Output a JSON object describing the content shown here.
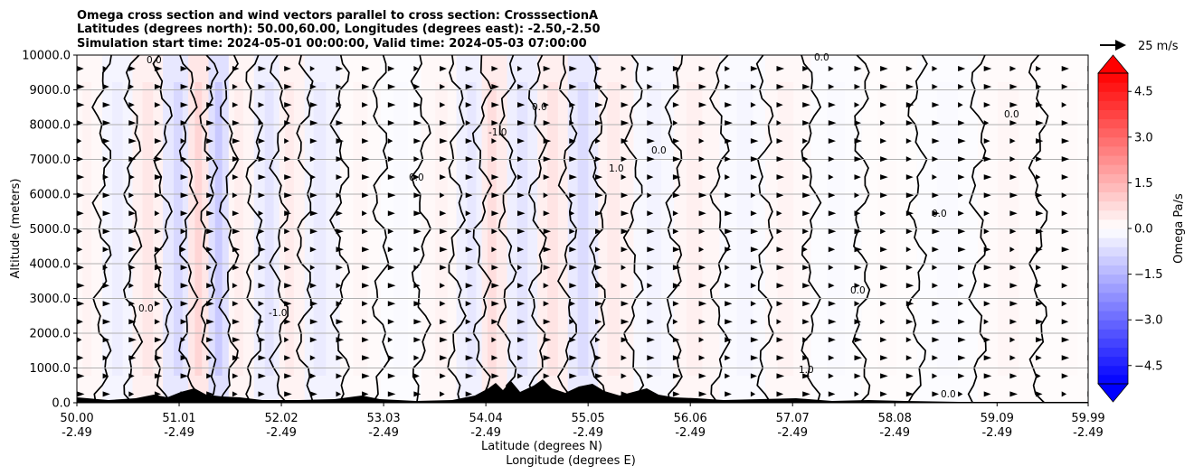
{
  "chart_data": {
    "type": "heatmap",
    "title": [
      "Omega cross section and wind vectors parallel to cross section: CrosssectionA",
      "Latitudes (degrees north): 50.00,60.00, Longitudes (degrees east): -2.50,-2.50",
      "Simulation start time: 2024-05-01 00:00:00, Valid time: 2024-05-03 07:00:00"
    ],
    "ylabel": "Altitude (meters)",
    "xlabel_lat": "Latitude (degrees N)",
    "xlabel_lon": "Longitude (degrees E)",
    "ylim": [
      0,
      10000
    ],
    "yticks": [
      "0.0",
      "1000.0",
      "2000.0",
      "3000.0",
      "4000.0",
      "5000.0",
      "6000.0",
      "7000.0",
      "8000.0",
      "9000.0",
      "10000.0"
    ],
    "xlim": [
      50.0,
      59.99
    ],
    "xticks": [
      {
        "lat": "50.00",
        "lon": "-2.49"
      },
      {
        "lat": "51.01",
        "lon": "-2.49"
      },
      {
        "lat": "52.02",
        "lon": "-2.49"
      },
      {
        "lat": "53.03",
        "lon": "-2.49"
      },
      {
        "lat": "54.04",
        "lon": "-2.49"
      },
      {
        "lat": "55.05",
        "lon": "-2.49"
      },
      {
        "lat": "56.06",
        "lon": "-2.49"
      },
      {
        "lat": "57.07",
        "lon": "-2.49"
      },
      {
        "lat": "58.08",
        "lon": "-2.49"
      },
      {
        "lat": "59.09",
        "lon": "-2.49"
      },
      {
        "lat": "59.99",
        "lon": "-2.49"
      }
    ],
    "grid": "horizontal",
    "colorbar": {
      "label": "Omega Pa/s",
      "range": [
        -5.1,
        5.1
      ],
      "ticks": [
        "−4.5",
        "−3.0",
        "−1.5",
        "0.0",
        "1.5",
        "3.0",
        "4.5"
      ],
      "tick_values": [
        -4.5,
        -3.0,
        -1.5,
        0.0,
        1.5,
        3.0,
        4.5
      ],
      "extend": "both",
      "colormap": "bwr"
    },
    "vector_key": {
      "label": "25 m/s",
      "speed": 25
    },
    "contour_labels": [
      "0.0",
      "1.0",
      "-1.0"
    ],
    "omega_bands": [
      {
        "lat": 50.1,
        "value": 0.4
      },
      {
        "lat": 50.4,
        "value": -0.6
      },
      {
        "lat": 50.7,
        "value": 0.8
      },
      {
        "lat": 51.0,
        "value": -1.3
      },
      {
        "lat": 51.2,
        "value": 1.4
      },
      {
        "lat": 51.4,
        "value": -1.8
      },
      {
        "lat": 51.6,
        "value": 0.6
      },
      {
        "lat": 51.9,
        "value": -0.9
      },
      {
        "lat": 52.1,
        "value": 0.7
      },
      {
        "lat": 52.4,
        "value": -0.7
      },
      {
        "lat": 52.8,
        "value": 0.3
      },
      {
        "lat": 53.2,
        "value": -0.2
      },
      {
        "lat": 53.6,
        "value": 0.4
      },
      {
        "lat": 53.9,
        "value": -0.8
      },
      {
        "lat": 54.1,
        "value": 1.1
      },
      {
        "lat": 54.4,
        "value": -0.9
      },
      {
        "lat": 54.7,
        "value": 0.9
      },
      {
        "lat": 55.0,
        "value": -1.2
      },
      {
        "lat": 55.3,
        "value": 0.7
      },
      {
        "lat": 55.7,
        "value": -0.4
      },
      {
        "lat": 56.1,
        "value": 0.5
      },
      {
        "lat": 56.6,
        "value": -0.3
      },
      {
        "lat": 57.0,
        "value": 0.4
      },
      {
        "lat": 57.5,
        "value": -0.2
      },
      {
        "lat": 58.0,
        "value": 0.2
      },
      {
        "lat": 58.6,
        "value": -0.2
      },
      {
        "lat": 59.2,
        "value": 0.3
      },
      {
        "lat": 59.8,
        "value": 0.2
      }
    ],
    "wind_u_mps": 8
  }
}
